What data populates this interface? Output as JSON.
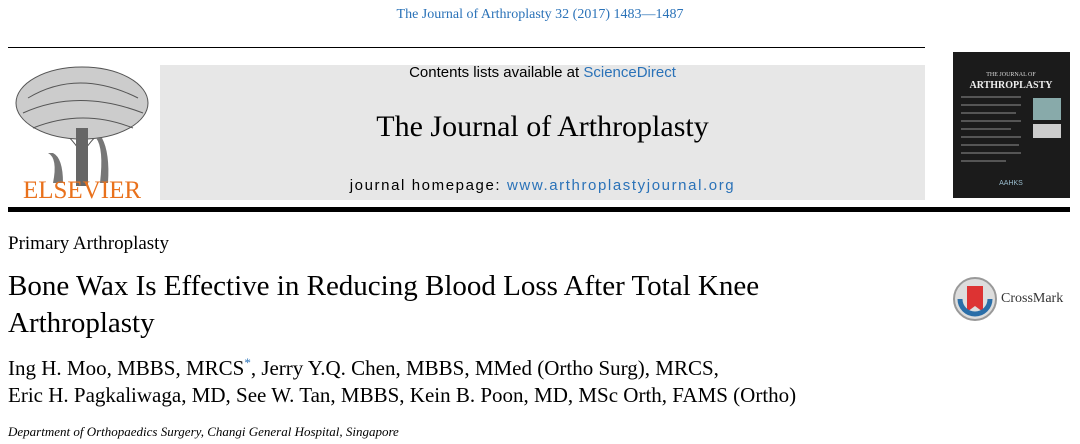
{
  "header": {
    "citation": "The Journal of Arthroplasty 32 (2017) 1483—1487"
  },
  "banner": {
    "publisher": "ELSEVIER",
    "contents_prefix": "Contents lists available at",
    "contents_link": "ScienceDirect",
    "journal_title": "The Journal of Arthroplasty",
    "homepage_label": "journal homepage:",
    "homepage_url": "www.arthroplastyjournal.org",
    "cover": {
      "line1": "THE JOURNAL OF",
      "line2": "ARTHROPLASTY",
      "society": "AAHKS"
    }
  },
  "article": {
    "section": "Primary Arthroplasty",
    "title": "Bone Wax Is Effective in Reducing Blood Loss After Total Knee Arthroplasty",
    "crossmark": "CrossMark",
    "authors_line1": {
      "first": "Ing H. Moo, MBBS, MRCS",
      "mark": "*",
      "rest": ", Jerry Y.Q. Chen, MBBS, MMed (Ortho Surg), MRCS,"
    },
    "authors_line2": "Eric H. Pagkaliwaga, MD, See W. Tan, MBBS, Kein B. Poon, MD, MSc Orth, FAMS (Ortho)",
    "affiliation": "Department of Orthopaedics Surgery, Changi General Hospital, Singapore"
  }
}
